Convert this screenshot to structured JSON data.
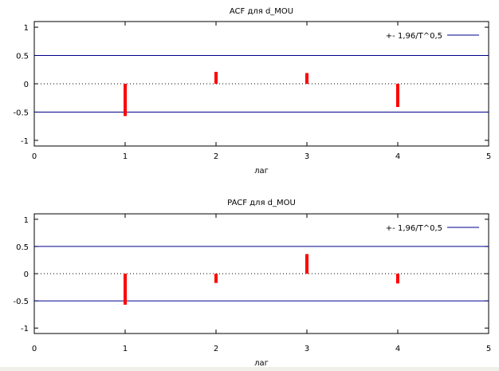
{
  "chart_data": [
    {
      "type": "bar",
      "title": "ACF для d_MOU",
      "xlabel": "лаг",
      "ylabel": "",
      "xlim": [
        0,
        5
      ],
      "ylim": [
        -1.1,
        1.1
      ],
      "x_ticks": [
        "0",
        "1",
        "2",
        "3",
        "4",
        "5"
      ],
      "y_ticks": [
        "1",
        "0.5",
        "0",
        "-0.5",
        "-1"
      ],
      "y_tick_values": [
        1,
        0.5,
        0,
        -0.5,
        -1
      ],
      "legend": {
        "label": "+- 1,96/T^0,5",
        "placement": "top-right"
      },
      "confidence_band": 0.5,
      "zero_line": "dotted",
      "x": [
        1,
        2,
        3,
        4
      ],
      "values": [
        -0.57,
        0.21,
        0.19,
        -0.41
      ],
      "colors": {
        "bars": "#ff0000",
        "band": "#00008b",
        "axes": "#000000"
      }
    },
    {
      "type": "bar",
      "title": "PACF для d_MOU",
      "xlabel": "лаг",
      "ylabel": "",
      "xlim": [
        0,
        5
      ],
      "ylim": [
        -1.1,
        1.1
      ],
      "x_ticks": [
        "0",
        "1",
        "2",
        "3",
        "4",
        "5"
      ],
      "y_ticks": [
        "1",
        "0.5",
        "0",
        "-0.5",
        "-1"
      ],
      "y_tick_values": [
        1,
        0.5,
        0,
        -0.5,
        -1
      ],
      "legend": {
        "label": "+- 1,96/T^0,5",
        "placement": "top-right"
      },
      "confidence_band": 0.5,
      "zero_line": "dotted",
      "x": [
        1,
        2,
        3,
        4
      ],
      "values": [
        -0.57,
        -0.17,
        0.36,
        -0.18
      ],
      "colors": {
        "bars": "#ff0000",
        "band": "#00008b",
        "axes": "#000000"
      }
    }
  ]
}
